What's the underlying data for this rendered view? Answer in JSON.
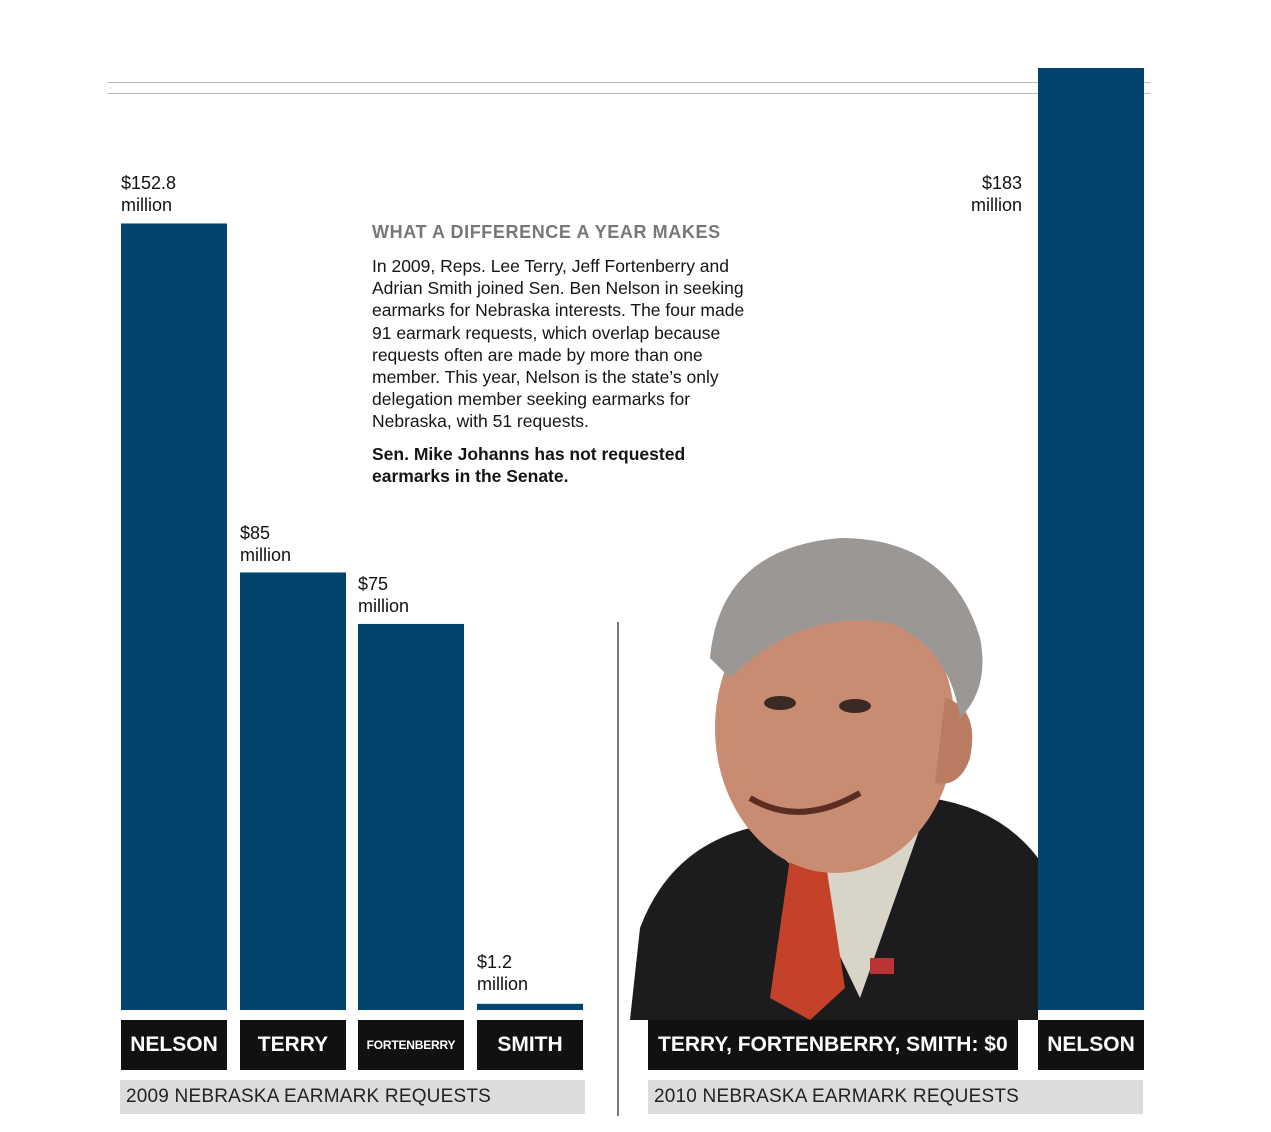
{
  "chart_data": [
    {
      "type": "bar",
      "categories": [
        "NELSON",
        "TERRY",
        "FORTENBERRY",
        "SMITH"
      ],
      "values": [
        152.8,
        85,
        75,
        1.2
      ],
      "value_labels": [
        [
          "$152.8",
          "million"
        ],
        [
          "$85",
          "million"
        ],
        [
          "$75",
          "million"
        ],
        [
          "$1.2",
          "million"
        ]
      ],
      "xlabel": "2009 NEBRASKA EARMARK REQUESTS",
      "ylim": [
        0,
        183
      ],
      "bar_color": "#03446f",
      "grid": false
    },
    {
      "type": "bar",
      "categories": [
        "NELSON"
      ],
      "values": [
        183
      ],
      "value_labels": [
        [
          "$183",
          "million"
        ]
      ],
      "zero_label": "TERRY, FORTENBERRY, SMITH: $0",
      "xlabel": "2010 NEBRASKA EARMARK REQUESTS",
      "ylim": [
        0,
        183
      ],
      "bar_color": "#03446f",
      "grid": false
    }
  ],
  "note": {
    "heading": "WHAT A DIFFERENCE A YEAR MAKES",
    "body": "In 2009, Reps. Lee Terry, Jeff Fortenberry and Adrian Smith joined Sen. Ben Nelson in seeking earmarks for Nebraska interests. The four made 91 earmark requests, which overlap because requests often are made by more than one member. This year, Nelson is the state’s only delegation member seeking earmarks for Nebraska, with 51 requests.",
    "bold": "Sen. Mike Johanns has not requested earmarks in the Senate."
  },
  "colors": {
    "bar": "#03446f",
    "label_box": "#111111",
    "footer_band": "#dcdcdc",
    "heading": "#777777"
  },
  "photo": {
    "icon": "portrait-photo"
  }
}
